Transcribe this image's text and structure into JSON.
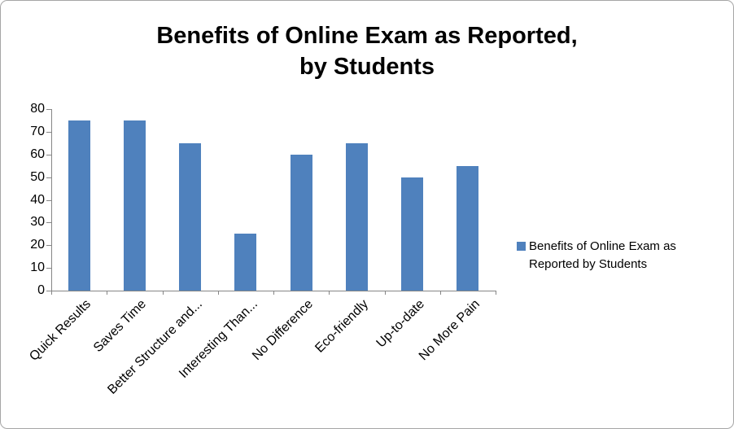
{
  "chart_data": {
    "type": "bar",
    "title": "Benefits of Online Exam as Reported,\nby Students",
    "categories": [
      "Quick Results",
      "Saves Time",
      "Better Structure and...",
      "Interesting Than...",
      "No Difference",
      "Eco-friendly",
      "Up-to-date",
      "No More Pain"
    ],
    "values": [
      75,
      75,
      65,
      25,
      60,
      65,
      50,
      55
    ],
    "series_name": "Benefits of Online Exam as Reported by Students",
    "ylim": [
      0,
      80
    ],
    "y_ticks": [
      0,
      10,
      20,
      30,
      40,
      50,
      60,
      70,
      80
    ],
    "bar_color": "#4f81bd",
    "axis_color": "#868686",
    "grid": false,
    "legend_position": "right"
  }
}
